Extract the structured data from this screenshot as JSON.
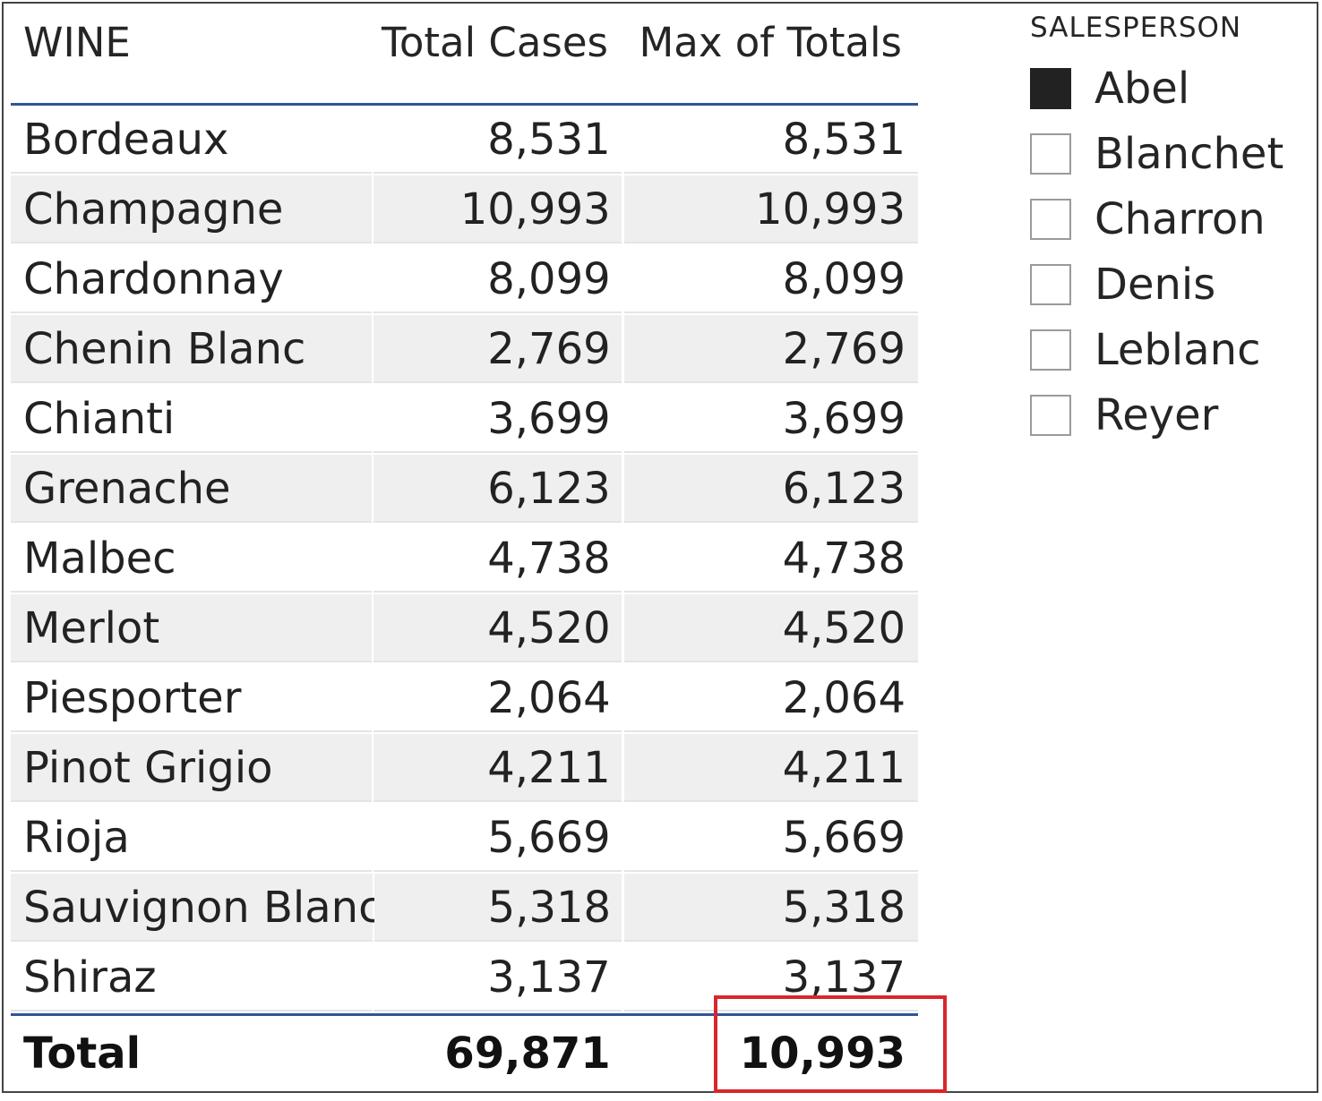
{
  "table": {
    "headers": {
      "wine": "WINE",
      "total_cases": "Total Cases",
      "max_of_totals": "Max of Totals"
    },
    "rows": [
      {
        "wine": "Bordeaux",
        "total_cases": "8,531",
        "max_of_totals": "8,531"
      },
      {
        "wine": "Champagne",
        "total_cases": "10,993",
        "max_of_totals": "10,993"
      },
      {
        "wine": "Chardonnay",
        "total_cases": "8,099",
        "max_of_totals": "8,099"
      },
      {
        "wine": "Chenin Blanc",
        "total_cases": "2,769",
        "max_of_totals": "2,769"
      },
      {
        "wine": "Chianti",
        "total_cases": "3,699",
        "max_of_totals": "3,699"
      },
      {
        "wine": "Grenache",
        "total_cases": "6,123",
        "max_of_totals": "6,123"
      },
      {
        "wine": "Malbec",
        "total_cases": "4,738",
        "max_of_totals": "4,738"
      },
      {
        "wine": "Merlot",
        "total_cases": "4,520",
        "max_of_totals": "4,520"
      },
      {
        "wine": "Piesporter",
        "total_cases": "2,064",
        "max_of_totals": "2,064"
      },
      {
        "wine": "Pinot Grigio",
        "total_cases": "4,211",
        "max_of_totals": "4,211"
      },
      {
        "wine": "Rioja",
        "total_cases": "5,669",
        "max_of_totals": "5,669"
      },
      {
        "wine": "Sauvignon Blanc",
        "total_cases": "5,318",
        "max_of_totals": "5,318"
      },
      {
        "wine": "Shiraz",
        "total_cases": "3,137",
        "max_of_totals": "3,137"
      }
    ],
    "total": {
      "label": "Total",
      "total_cases": "69,871",
      "max_of_totals": "10,993"
    }
  },
  "slicer": {
    "title": "SALESPERSON",
    "options": [
      {
        "label": "Abel",
        "checked": true
      },
      {
        "label": "Blanchet",
        "checked": false
      },
      {
        "label": "Charron",
        "checked": false
      },
      {
        "label": "Denis",
        "checked": false
      },
      {
        "label": "Leblanc",
        "checked": false
      },
      {
        "label": "Reyer",
        "checked": false
      }
    ]
  },
  "colors": {
    "header_rule": "#2f5597",
    "highlight": "#d9262a",
    "row_alt": "#efefef",
    "checkbox_checked": "#222222"
  },
  "icons": {
    "checkbox_checked": "checkbox-checked-icon",
    "checkbox_empty": "checkbox-empty-icon"
  }
}
